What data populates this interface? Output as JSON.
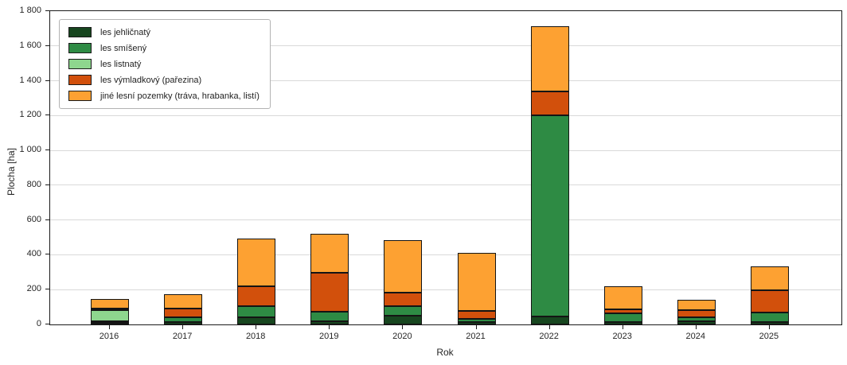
{
  "chart_data": {
    "type": "bar",
    "stacked": true,
    "xlabel": "Rok",
    "ylabel": "Plocha [ha]",
    "ylim": [
      0,
      1800
    ],
    "ytick_step": 200,
    "ytick_labels": [
      "0",
      "200",
      "400",
      "600",
      "800",
      "1 000",
      "1 200",
      "1 400",
      "1 600",
      "1 800"
    ],
    "grid": "horizontal",
    "legend_position": "upper-left",
    "categories": [
      "2016",
      "2017",
      "2018",
      "2019",
      "2020",
      "2021",
      "2022",
      "2023",
      "2024",
      "2025"
    ],
    "series": [
      {
        "name": "les jehličnatý",
        "color": "#17461f",
        "values": [
          10,
          15,
          40,
          20,
          50,
          15,
          45,
          15,
          20,
          15
        ]
      },
      {
        "name": "les smíšený",
        "color": "#2e8b44",
        "values": [
          5,
          25,
          65,
          55,
          55,
          15,
          1155,
          50,
          20,
          55
        ]
      },
      {
        "name": "les listnatý",
        "color": "#8ed68e",
        "values": [
          65,
          0,
          0,
          0,
          0,
          0,
          0,
          0,
          0,
          0
        ]
      },
      {
        "name": "les výmladkový (pařezina)",
        "color": "#d2500c",
        "values": [
          10,
          50,
          115,
          220,
          80,
          50,
          140,
          20,
          40,
          125
        ]
      },
      {
        "name": "jiné lesní pozemky (tráva, hrabanka, listí)",
        "color": "#fda132",
        "values": [
          55,
          85,
          275,
          225,
          300,
          330,
          375,
          135,
          60,
          140
        ]
      }
    ],
    "totals": [
      145,
      175,
      495,
      520,
      485,
      410,
      1715,
      220,
      140,
      335
    ]
  }
}
